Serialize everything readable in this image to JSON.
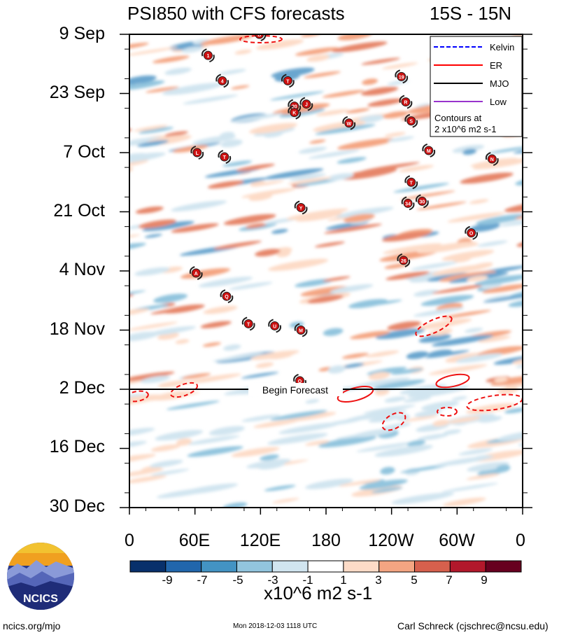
{
  "title": "PSI850 with CFS forecasts",
  "region": "15S - 15N",
  "chart_data": {
    "type": "heatmap",
    "title": "PSI850 with CFS forecasts",
    "subtitle": "15S - 15N",
    "x_tick_labels": [
      "0",
      "60E",
      "120E",
      "180",
      "120W",
      "60W",
      "0"
    ],
    "x_range_deg_east": [
      0,
      360
    ],
    "y_tick_labels": [
      "9 Sep",
      "23 Sep",
      "7 Oct",
      "21 Oct",
      "4 Nov",
      "18 Nov",
      "2 Dec",
      "16 Dec",
      "30 Dec"
    ],
    "y_time_direction": "downward",
    "forecast_label": "Begin Forecast",
    "forecast_start": "2 Dec",
    "colorbar": {
      "ticks": [
        "-9",
        "-7",
        "-5",
        "-3",
        "-1",
        "1",
        "3",
        "5",
        "7",
        "9"
      ],
      "units": "x10^6 m2 s-1",
      "colors": [
        "#08306b",
        "#2166ac",
        "#4393c3",
        "#92c5de",
        "#d1e5f0",
        "#ffffff",
        "#fddbc7",
        "#f4a582",
        "#d6604d",
        "#b2182b",
        "#67001f"
      ]
    },
    "legend": {
      "items": [
        {
          "label": "Kelvin",
          "color": "#0000ff",
          "style": "dashed"
        },
        {
          "label": "ER",
          "color": "#ff0000",
          "style": "solid"
        },
        {
          "label": "MJO",
          "color": "#000000",
          "style": "solid"
        },
        {
          "label": "Low",
          "color": "#9933cc",
          "style": "solid"
        }
      ],
      "note_line1": "Contours at",
      "note_line2": "2 x10^6 m2 s-1",
      "placement": "top-right"
    },
    "storms": [
      {
        "label": "B",
        "lon": 119,
        "day": 0
      },
      {
        "label": "1",
        "lon": 72,
        "day": 5
      },
      {
        "label": "4",
        "lon": 85,
        "day": 11
      },
      {
        "label": "T",
        "lon": 145,
        "day": 11
      },
      {
        "label": "20",
        "lon": 151,
        "day": 17
      },
      {
        "label": "K",
        "lon": 151,
        "day": 18.5
      },
      {
        "label": "J",
        "lon": 162,
        "day": 16.5
      },
      {
        "label": "W",
        "lon": 201,
        "day": 21
      },
      {
        "label": "19",
        "lon": 249,
        "day": 10
      },
      {
        "label": "R",
        "lon": 253,
        "day": 16
      },
      {
        "label": "S",
        "lon": 258,
        "day": 20.5
      },
      {
        "label": "L",
        "lon": 62,
        "day": 28
      },
      {
        "label": "T",
        "lon": 87,
        "day": 29
      },
      {
        "label": "M",
        "lon": 274,
        "day": 27.5
      },
      {
        "label": "N",
        "lon": 332,
        "day": 29.5
      },
      {
        "label": "T",
        "lon": 258,
        "day": 35
      },
      {
        "label": "Y",
        "lon": 157,
        "day": 41
      },
      {
        "label": "34",
        "lon": 255,
        "day": 40
      },
      {
        "label": "30",
        "lon": 268,
        "day": 39.5
      },
      {
        "label": "O",
        "lon": 313,
        "day": 47
      },
      {
        "label": "A",
        "lon": 61,
        "day": 56.5
      },
      {
        "label": "26",
        "lon": 251,
        "day": 53.5
      },
      {
        "label": "Q",
        "lon": 89,
        "day": 62
      },
      {
        "label": "T",
        "lon": 109,
        "day": 68.5
      },
      {
        "label": "U",
        "lon": 133,
        "day": 69
      },
      {
        "label": "M",
        "lon": 157,
        "day": 70
      },
      {
        "label": "O",
        "lon": 156,
        "day": 82
      }
    ]
  },
  "footer": {
    "left": "ncics.org/mjo",
    "center": "Mon 2018-12-03 1118 UTC",
    "right": "Carl Schreck (cjschrec@ncsu.edu)",
    "logo_text": "NCICS"
  }
}
